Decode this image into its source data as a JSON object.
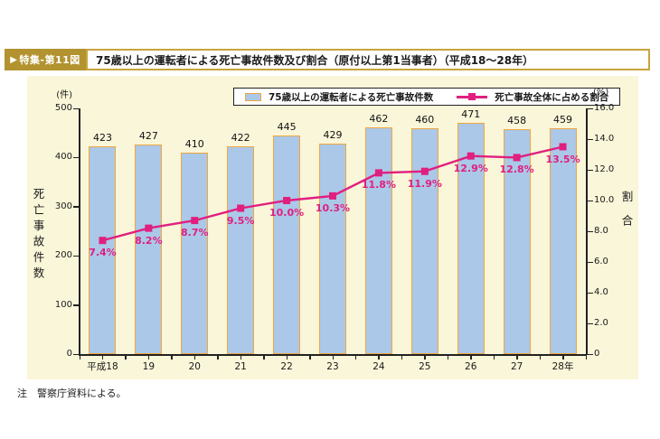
{
  "header": {
    "badge_arrow": "▶",
    "badge": "特集-第11図",
    "title": "75歳以上の運転者による死亡事故件数及び割合（原付以上第1当事者）（平成18～28年）"
  },
  "legend": {
    "bar_label": "75歳以上の運転者による死亡事故件数",
    "line_label": "死亡事故全体に占める割合"
  },
  "footnote": "注　警察庁資料による。",
  "chart_data": {
    "type": "bar+line",
    "title": "75歳以上の運転者による死亡事故件数及び割合（原付以上第1当事者）（平成18～28年）",
    "categories": [
      "平成18",
      "19",
      "20",
      "21",
      "22",
      "23",
      "24",
      "25",
      "26",
      "27",
      "28年"
    ],
    "series": [
      {
        "name": "75歳以上の運転者による死亡事故件数",
        "type": "bar",
        "axis": "left",
        "values": [
          423,
          427,
          410,
          422,
          445,
          429,
          462,
          460,
          471,
          458,
          459
        ]
      },
      {
        "name": "死亡事故全体に占める割合",
        "type": "line",
        "axis": "right",
        "values": [
          7.4,
          8.2,
          8.7,
          9.5,
          10.0,
          10.3,
          11.8,
          11.9,
          12.9,
          12.8,
          13.5
        ],
        "labels": [
          "7.4%",
          "8.2%",
          "8.7%",
          "9.5%",
          "10.0%",
          "10.3%",
          "11.8%",
          "11.9%",
          "12.9%",
          "12.8%",
          "13.5%"
        ]
      }
    ],
    "left_axis": {
      "unit": "(件)",
      "title": "死亡事故件数",
      "min": 0,
      "max": 500,
      "ticks": [
        500,
        400,
        300,
        200,
        100,
        0
      ]
    },
    "right_axis": {
      "unit": "(%)",
      "title": "割合",
      "min": 0,
      "max": 16,
      "ticks": [
        "16.0",
        "14.0",
        "12.0",
        "10.0",
        "8.0",
        "6.0",
        "4.0",
        "2.0",
        "0"
      ]
    },
    "grid": false,
    "legend_position": "top-center"
  },
  "colors": {
    "panel_bg": "#faf6d9",
    "bar_fill": "#abc8e8",
    "bar_border": "#f0a640",
    "line": "#e01f7f",
    "badge_bg": "#b2932f",
    "title_border": "#c8a43d",
    "axis": "#222222"
  }
}
